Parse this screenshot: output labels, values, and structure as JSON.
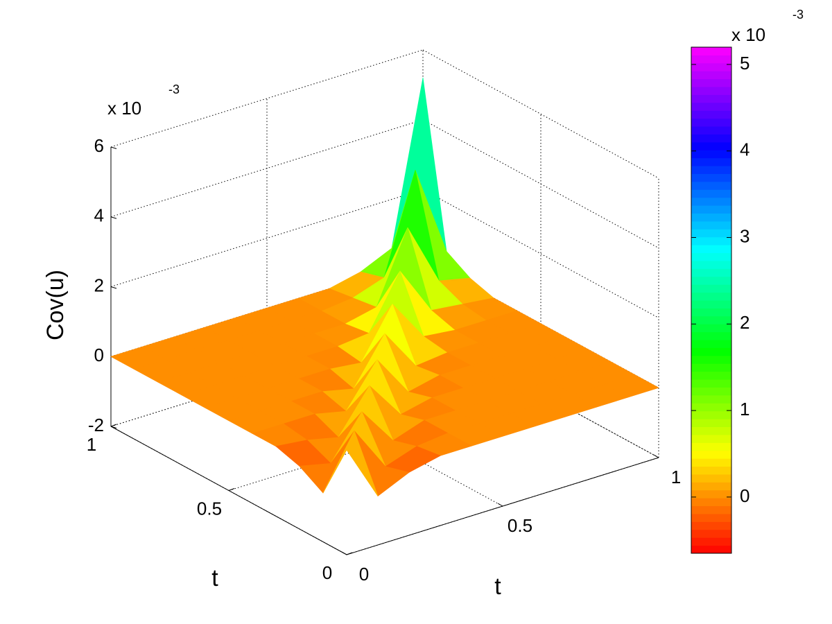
{
  "chart_data": {
    "type": "surface",
    "zlabel": "Cov(u)",
    "xlabel": "t",
    "ylabel": "t",
    "z_multiplier": {
      "base": "x 10",
      "exponent": "-3"
    },
    "x": [
      0,
      0.1,
      0.2,
      0.3,
      0.4,
      0.5,
      0.6,
      0.7,
      0.8,
      0.9,
      1
    ],
    "y": [
      0,
      0.1,
      0.2,
      0.3,
      0.4,
      0.5,
      0.6,
      0.7,
      0.8,
      0.9,
      1
    ],
    "z": [
      [
        1.0,
        -0.6,
        -0.2,
        0,
        0,
        0,
        0,
        0,
        0,
        0,
        0
      ],
      [
        -0.6,
        0.9,
        -0.4,
        -0.1,
        0,
        0,
        0,
        0,
        0,
        0,
        0
      ],
      [
        -0.2,
        -0.4,
        0.8,
        -0.3,
        0,
        0,
        0,
        0,
        0,
        0,
        0
      ],
      [
        0,
        -0.1,
        -0.3,
        0.9,
        -0.2,
        0,
        0,
        0,
        0,
        0,
        0
      ],
      [
        0,
        0,
        0,
        -0.2,
        1.0,
        -0.2,
        0,
        0,
        0,
        0,
        0
      ],
      [
        0,
        0,
        0,
        0,
        -0.2,
        1.1,
        -0.1,
        0,
        0,
        0,
        0
      ],
      [
        0,
        0,
        0,
        0,
        0,
        -0.1,
        1.3,
        0.1,
        0,
        0,
        0
      ],
      [
        0,
        0,
        0,
        0,
        0,
        0,
        0.1,
        1.6,
        0.2,
        0.1,
        0
      ],
      [
        0,
        0,
        0,
        0,
        0,
        0,
        0,
        0.2,
        2.2,
        0.4,
        0.2
      ],
      [
        0,
        0,
        0,
        0,
        0,
        0,
        0,
        0.1,
        0.4,
        3.2,
        0.6
      ],
      [
        0,
        0,
        0,
        0,
        0,
        0,
        0,
        0,
        0.2,
        0.6,
        5.2
      ]
    ],
    "xlim": [
      0,
      1
    ],
    "ylim": [
      0,
      1
    ],
    "zlim": [
      -2,
      6
    ],
    "xticks": [
      0,
      0.5,
      1
    ],
    "yticks": [
      0,
      0.5,
      1
    ],
    "zticks": [
      -2,
      0,
      2,
      4,
      6
    ],
    "grid": true,
    "colormap": "hsv",
    "colorbar": {
      "clim": [
        -0.65,
        5.2
      ],
      "ticks": [
        0,
        1,
        2,
        3,
        4,
        5
      ],
      "multiplier": {
        "base": "x 10",
        "exponent": "-3"
      }
    }
  }
}
